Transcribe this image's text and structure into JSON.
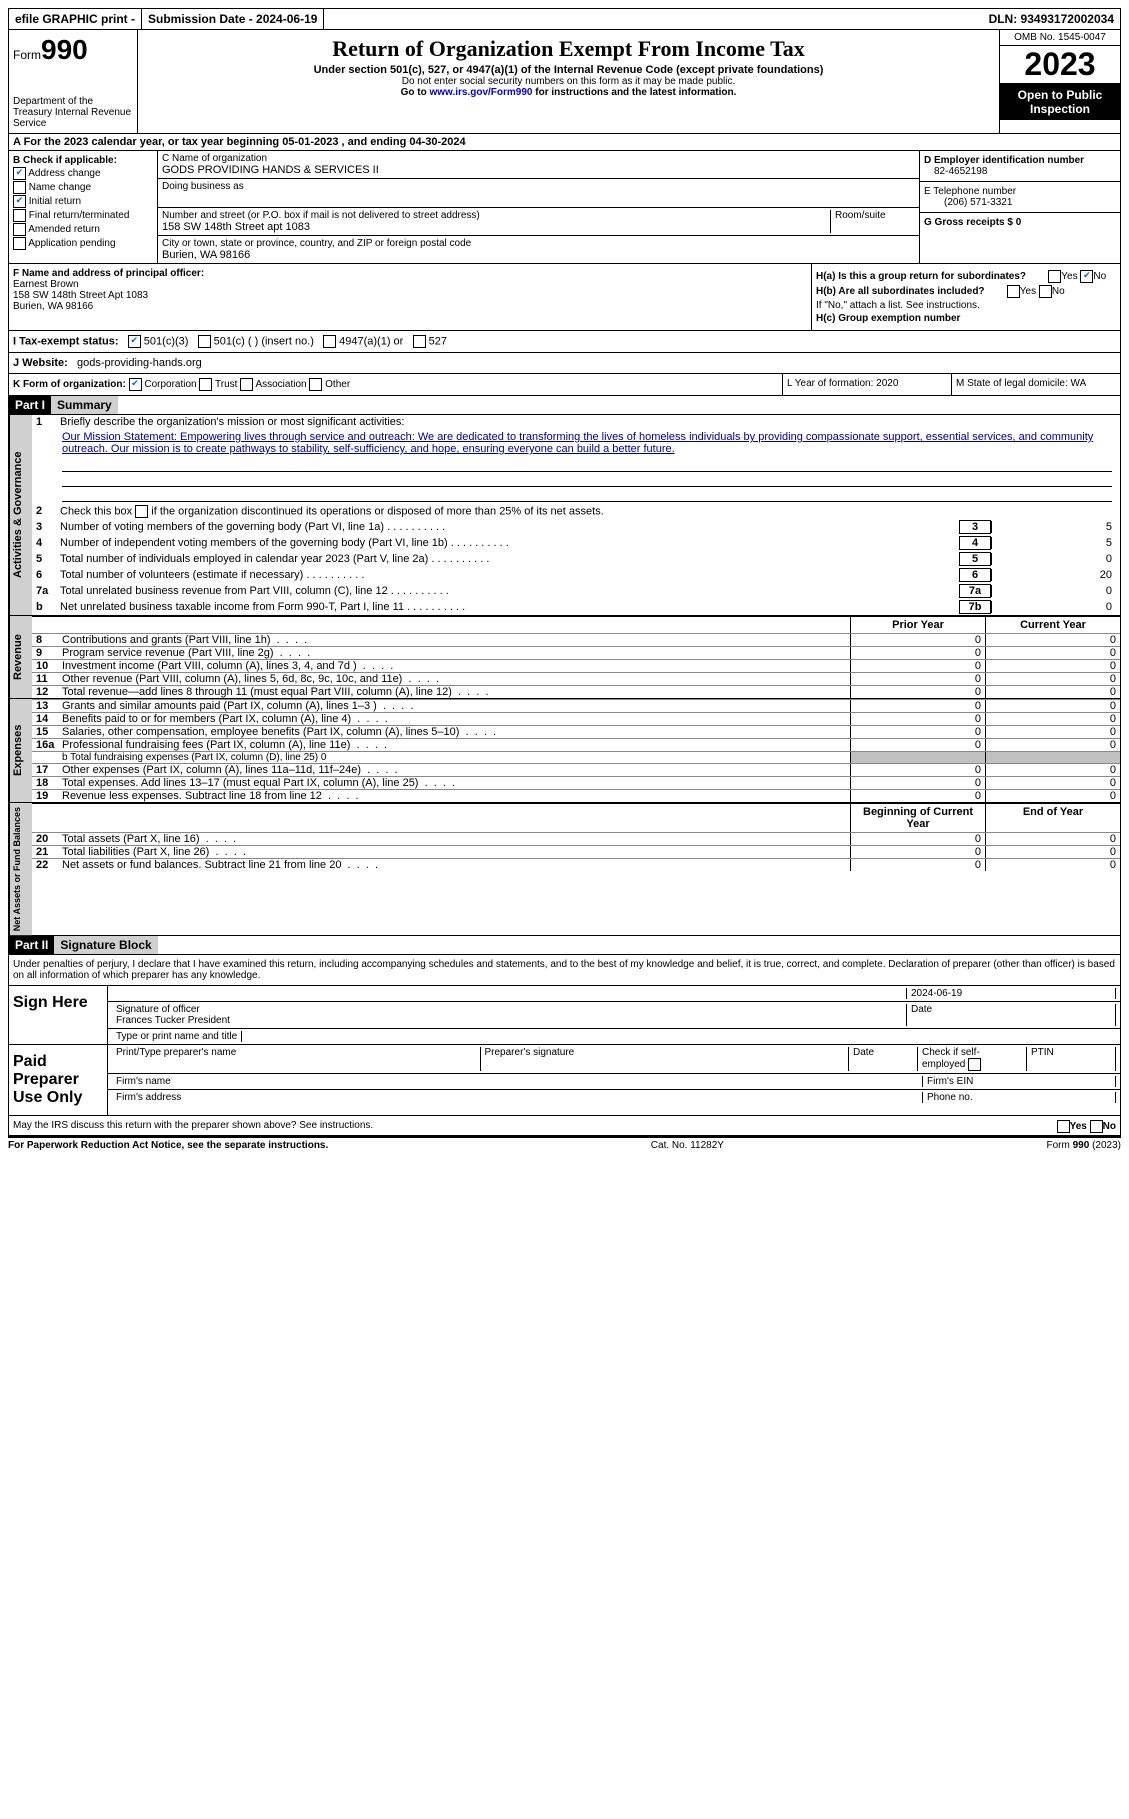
{
  "topbar": {
    "efile": "efile GRAPHIC print -",
    "submission": "Submission Date - 2024-06-19",
    "dln": "DLN: 93493172002034"
  },
  "header": {
    "form_label": "Form",
    "form_num": "990",
    "title": "Return of Organization Exempt From Income Tax",
    "subtitle": "Under section 501(c), 527, or 4947(a)(1) of the Internal Revenue Code (except private foundations)",
    "note1": "Do not enter social security numbers on this form as it may be made public.",
    "note2_pre": "Go to ",
    "note2_link": "www.irs.gov/Form990",
    "note2_post": " for instructions and the latest information.",
    "dept": "Department of the Treasury Internal Revenue Service",
    "omb": "OMB No. 1545-0047",
    "year": "2023",
    "inspection": "Open to Public Inspection"
  },
  "rowA": "A For the 2023 calendar year, or tax year beginning 05-01-2023  , and ending 04-30-2024",
  "boxB": {
    "label": "B Check if applicable:",
    "items": [
      "Address change",
      "Name change",
      "Initial return",
      "Final return/terminated",
      "Amended return",
      "Application pending"
    ],
    "checked": [
      true,
      false,
      true,
      false,
      false,
      false
    ]
  },
  "boxC": {
    "name_label": "C Name of organization",
    "name": "GODS PROVIDING HANDS & SERVICES II",
    "dba_label": "Doing business as",
    "dba": "",
    "street_label": "Number and street (or P.O. box if mail is not delivered to street address)",
    "room_label": "Room/suite",
    "street": "158 SW 148th Street apt 1083",
    "city_label": "City or town, state or province, country, and ZIP or foreign postal code",
    "city": "Burien, WA  98166"
  },
  "boxD": {
    "ein_label": "D Employer identification number",
    "ein": "82-4652198",
    "phone_label": "E Telephone number",
    "phone": "(206) 571-3321",
    "gross_label": "G Gross receipts $ 0"
  },
  "boxF": {
    "label": "F Name and address of principal officer:",
    "name": "Earnest Brown",
    "addr1": "158 SW 148th Street Apt 1083",
    "addr2": "Burien, WA  98166"
  },
  "boxH": {
    "ha": "H(a)  Is this a group return for subordinates?",
    "hb": "H(b)  Are all subordinates included?",
    "note": "If \"No,\" attach a list. See instructions.",
    "hc": "H(c)  Group exemption number",
    "yes": "Yes",
    "no": "No"
  },
  "rowI": {
    "label": "I Tax-exempt status:",
    "opts": [
      "501(c)(3)",
      "501(c) (  ) (insert no.)",
      "4947(a)(1) or",
      "527"
    ]
  },
  "rowJ": {
    "label": "J Website:",
    "value": "gods-providing-hands.org"
  },
  "rowK": {
    "label": "K Form of organization:",
    "opts": [
      "Corporation",
      "Trust",
      "Association",
      "Other"
    ]
  },
  "rowL": "L Year of formation: 2020",
  "rowM": "M State of legal domicile: WA",
  "part1": {
    "header": "Part I",
    "title": "Summary",
    "tab_ag": "Activities & Governance",
    "tab_rev": "Revenue",
    "tab_exp": "Expenses",
    "tab_na": "Net Assets or Fund Balances",
    "line1_label": "Briefly describe the organization's mission or most significant activities:",
    "mission": "Our Mission Statement: Empowering lives through service and outreach: We are dedicated to transforming the lives of homeless individuals by providing compassionate support, essential services, and community outreach. Our mission is to create pathways to stability, self-sufficiency, and hope, ensuring everyone can build a better future.",
    "line2": "Check this box  if the organization discontinued its operations or disposed of more than 25% of its net assets.",
    "lines_ag": [
      {
        "n": "3",
        "d": "Number of voting members of the governing body (Part VI, line 1a)",
        "box": "3",
        "v": "5"
      },
      {
        "n": "4",
        "d": "Number of independent voting members of the governing body (Part VI, line 1b)",
        "box": "4",
        "v": "5"
      },
      {
        "n": "5",
        "d": "Total number of individuals employed in calendar year 2023 (Part V, line 2a)",
        "box": "5",
        "v": "0"
      },
      {
        "n": "6",
        "d": "Total number of volunteers (estimate if necessary)",
        "box": "6",
        "v": "20"
      },
      {
        "n": "7a",
        "d": "Total unrelated business revenue from Part VIII, column (C), line 12",
        "box": "7a",
        "v": "0"
      },
      {
        "n": "b",
        "d": "Net unrelated business taxable income from Form 990-T, Part I, line 11",
        "box": "7b",
        "v": "0"
      }
    ],
    "col_prior": "Prior Year",
    "col_current": "Current Year",
    "lines_rev": [
      {
        "n": "8",
        "d": "Contributions and grants (Part VIII, line 1h)",
        "c1": "0",
        "c2": "0"
      },
      {
        "n": "9",
        "d": "Program service revenue (Part VIII, line 2g)",
        "c1": "0",
        "c2": "0"
      },
      {
        "n": "10",
        "d": "Investment income (Part VIII, column (A), lines 3, 4, and 7d )",
        "c1": "0",
        "c2": "0"
      },
      {
        "n": "11",
        "d": "Other revenue (Part VIII, column (A), lines 5, 6d, 8c, 9c, 10c, and 11e)",
        "c1": "0",
        "c2": "0"
      },
      {
        "n": "12",
        "d": "Total revenue—add lines 8 through 11 (must equal Part VIII, column (A), line 12)",
        "c1": "0",
        "c2": "0"
      }
    ],
    "lines_exp": [
      {
        "n": "13",
        "d": "Grants and similar amounts paid (Part IX, column (A), lines 1–3 )",
        "c1": "0",
        "c2": "0"
      },
      {
        "n": "14",
        "d": "Benefits paid to or for members (Part IX, column (A), line 4)",
        "c1": "0",
        "c2": "0"
      },
      {
        "n": "15",
        "d": "Salaries, other compensation, employee benefits (Part IX, column (A), lines 5–10)",
        "c1": "0",
        "c2": "0"
      },
      {
        "n": "16a",
        "d": "Professional fundraising fees (Part IX, column (A), line 11e)",
        "c1": "0",
        "c2": "0"
      }
    ],
    "line16b": "b  Total fundraising expenses (Part IX, column (D), line 25) 0",
    "lines_exp2": [
      {
        "n": "17",
        "d": "Other expenses (Part IX, column (A), lines 11a–11d, 11f–24e)",
        "c1": "0",
        "c2": "0"
      },
      {
        "n": "18",
        "d": "Total expenses. Add lines 13–17 (must equal Part IX, column (A), line 25)",
        "c1": "0",
        "c2": "0"
      },
      {
        "n": "19",
        "d": "Revenue less expenses. Subtract line 18 from line 12",
        "c1": "0",
        "c2": "0"
      }
    ],
    "col_begin": "Beginning of Current Year",
    "col_end": "End of Year",
    "lines_na": [
      {
        "n": "20",
        "d": "Total assets (Part X, line 16)",
        "c1": "0",
        "c2": "0"
      },
      {
        "n": "21",
        "d": "Total liabilities (Part X, line 26)",
        "c1": "0",
        "c2": "0"
      },
      {
        "n": "22",
        "d": "Net assets or fund balances. Subtract line 21 from line 20",
        "c1": "0",
        "c2": "0"
      }
    ]
  },
  "part2": {
    "header": "Part II",
    "title": "Signature Block",
    "declaration": "Under penalties of perjury, I declare that I have examined this return, including accompanying schedules and statements, and to the best of my knowledge and belief, it is true, correct, and complete. Declaration of preparer (other than officer) is based on all information of which preparer has any knowledge.",
    "sign_here": "Sign Here",
    "sig_officer": "Signature of officer",
    "sig_name": "Frances Tucker  President",
    "sig_type": "Type or print name and title",
    "sig_date_label": "Date",
    "sig_date": "2024-06-19",
    "paid": "Paid Preparer Use Only",
    "prep_name": "Print/Type preparer's name",
    "prep_sig": "Preparer's signature",
    "prep_date": "Date",
    "prep_check": "Check  if self-employed",
    "ptin": "PTIN",
    "firm_name": "Firm's name",
    "firm_ein": "Firm's EIN",
    "firm_addr": "Firm's address",
    "firm_phone": "Phone no.",
    "may_irs": "May the IRS discuss this return with the preparer shown above? See instructions."
  },
  "footer": {
    "pra": "For Paperwork Reduction Act Notice, see the separate instructions.",
    "cat": "Cat. No. 11282Y",
    "form": "Form 990 (2023)"
  }
}
